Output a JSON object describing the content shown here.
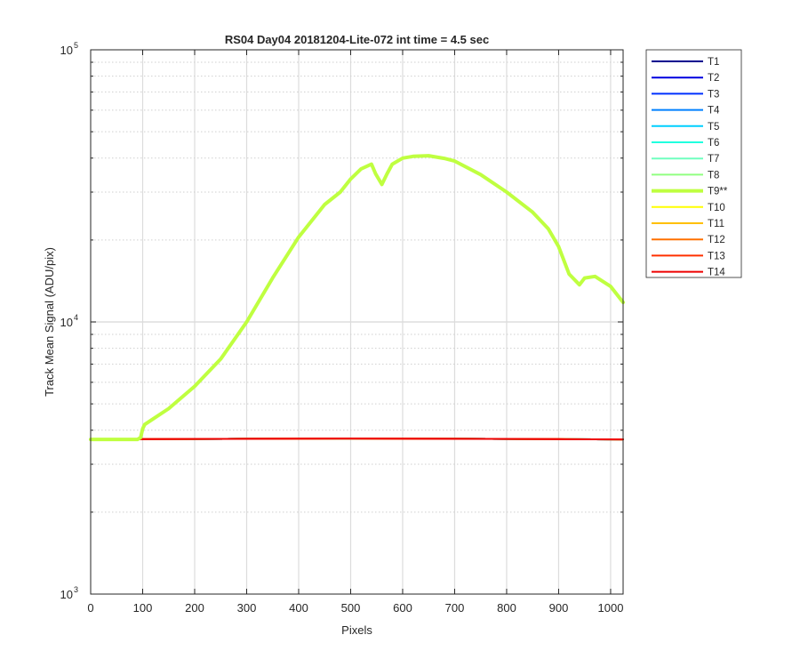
{
  "chart_data": {
    "type": "line",
    "title": "RS04 Day04 20181204-Lite-072 int time = 4.5 sec",
    "xlabel": "Pixels",
    "ylabel": "Track Mean Signal (ADU/pix)",
    "xlim": [
      0,
      1024
    ],
    "ylim": [
      1000,
      100000
    ],
    "yscale": "log",
    "grid": true,
    "minor_grid": true,
    "legend_position": "outside-right",
    "xticks": [
      0,
      100,
      200,
      300,
      400,
      500,
      600,
      700,
      800,
      900,
      1000
    ],
    "xtick_labels": [
      "0",
      "100",
      "200",
      "300",
      "400",
      "500",
      "600",
      "700",
      "800",
      "900",
      "1000"
    ],
    "yticks": [
      {
        "value": 1000,
        "base": "10",
        "exp": "3"
      },
      {
        "value": 10000,
        "base": "10",
        "exp": "4"
      },
      {
        "value": 100000,
        "base": "10",
        "exp": "5"
      }
    ],
    "flat_series_x": [
      0,
      100,
      300,
      500,
      700,
      900,
      1024
    ],
    "flat_series_y": [
      3700,
      3710,
      3720,
      3730,
      3720,
      3710,
      3700
    ],
    "series": [
      {
        "name": "T1",
        "color": "#00008f"
      },
      {
        "name": "T2",
        "color": "#0000df"
      },
      {
        "name": "T3",
        "color": "#0030ff"
      },
      {
        "name": "T4",
        "color": "#0080ff"
      },
      {
        "name": "T5",
        "color": "#00cfff"
      },
      {
        "name": "T6",
        "color": "#20ffdf"
      },
      {
        "name": "T7",
        "color": "#70ffbf"
      },
      {
        "name": "T8",
        "color": "#90ff80"
      },
      {
        "name": "T9**",
        "color": "#bfff40",
        "highlight": true,
        "x": [
          0,
          90,
          96,
          100,
          104,
          120,
          150,
          200,
          250,
          300,
          350,
          400,
          450,
          480,
          500,
          520,
          540,
          548,
          560,
          570,
          580,
          600,
          620,
          650,
          680,
          700,
          750,
          800,
          850,
          880,
          900,
          920,
          940,
          950,
          970,
          1000,
          1024
        ],
        "y": [
          3700,
          3700,
          3760,
          4050,
          4200,
          4400,
          4800,
          5800,
          7300,
          10000,
          14500,
          20500,
          27000,
          30000,
          33500,
          36500,
          38000,
          35000,
          32000,
          35000,
          38000,
          40000,
          40600,
          40800,
          39900,
          39000,
          34800,
          30000,
          25300,
          22000,
          18900,
          15000,
          13700,
          14500,
          14700,
          13500,
          11800
        ]
      },
      {
        "name": "T10",
        "color": "#ffff00"
      },
      {
        "name": "T11",
        "color": "#ffbf00"
      },
      {
        "name": "T12",
        "color": "#ff7000"
      },
      {
        "name": "T13",
        "color": "#ff3000"
      },
      {
        "name": "T14",
        "color": "#ee0000"
      }
    ]
  }
}
